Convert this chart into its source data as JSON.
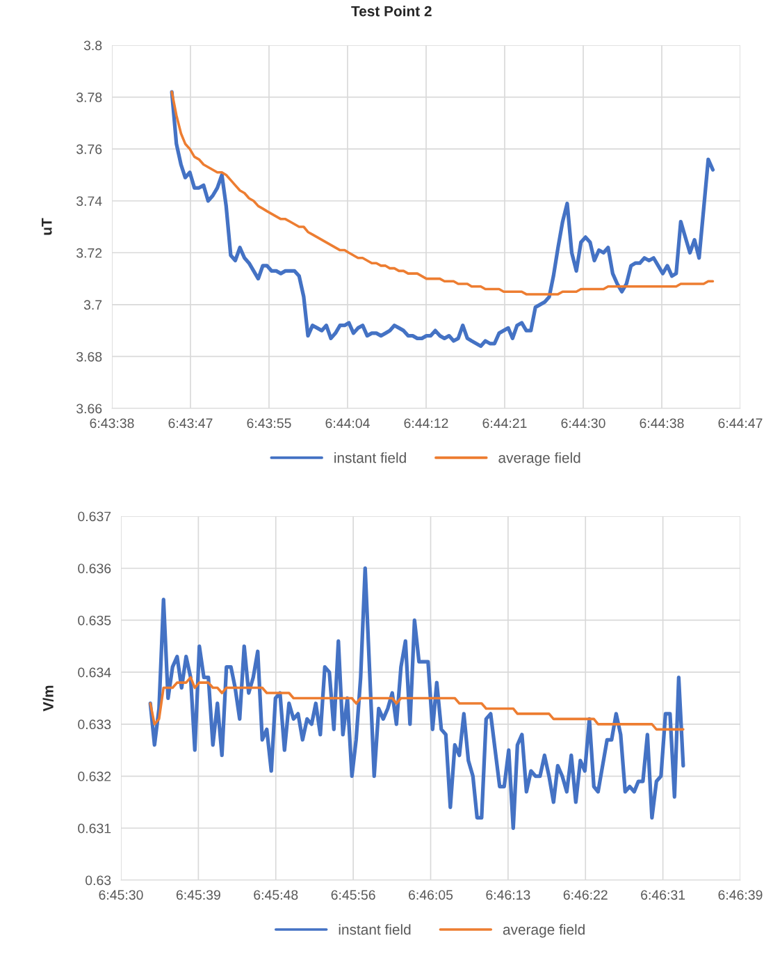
{
  "chart_data": [
    {
      "type": "line",
      "title": "Test Point 2",
      "ylabel": "uT",
      "xlim": [
        6.7272,
        6.7464
      ],
      "ylim": [
        3.66,
        3.8
      ],
      "xticks": [
        {
          "value": 6.7272,
          "label": "6:43:38"
        },
        {
          "value": 6.7296,
          "label": "6:43:47"
        },
        {
          "value": 6.732,
          "label": "6:43:55"
        },
        {
          "value": 6.7344,
          "label": "6:44:04"
        },
        {
          "value": 6.7368,
          "label": "6:44:12"
        },
        {
          "value": 6.7392,
          "label": "6:44:21"
        },
        {
          "value": 6.7416,
          "label": "6:44:30"
        },
        {
          "value": 6.744,
          "label": "6:44:38"
        },
        {
          "value": 6.7464,
          "label": "6:44:47"
        }
      ],
      "yticks": [
        3.66,
        3.68,
        3.7,
        3.72,
        3.74,
        3.76,
        3.78,
        3.8
      ],
      "grid": true,
      "legend": "bottom",
      "x": [
        6.72903,
        6.72917,
        6.72931,
        6.72944,
        6.72958,
        6.72972,
        6.72986,
        6.73,
        6.73014,
        6.73028,
        6.73042,
        6.73056,
        6.73069,
        6.73083,
        6.73097,
        6.73111,
        6.73125,
        6.73139,
        6.73153,
        6.73167,
        6.73181,
        6.73194,
        6.73208,
        6.73222,
        6.73236,
        6.7325,
        6.73264,
        6.73278,
        6.73292,
        6.73306,
        6.73319,
        6.73333,
        6.73347,
        6.73361,
        6.73375,
        6.73389,
        6.73403,
        6.73417,
        6.73431,
        6.73444,
        6.73458,
        6.73472,
        6.73486,
        6.735,
        6.73514,
        6.73528,
        6.73542,
        6.73556,
        6.73569,
        6.73583,
        6.73597,
        6.73611,
        6.73625,
        6.73639,
        6.73653,
        6.73667,
        6.73681,
        6.73694,
        6.73708,
        6.73722,
        6.73736,
        6.7375,
        6.73764,
        6.73778,
        6.73792,
        6.73806,
        6.73819,
        6.73833,
        6.73847,
        6.73861,
        6.73875,
        6.73889,
        6.73903,
        6.73917,
        6.73931,
        6.73944,
        6.73958,
        6.73972,
        6.73986,
        6.74,
        6.74014,
        6.74028,
        6.74042,
        6.74056,
        6.74069,
        6.74083,
        6.74097,
        6.74111,
        6.74125,
        6.74139,
        6.74153,
        6.74167,
        6.74181,
        6.74194,
        6.74208,
        6.74222,
        6.74236,
        6.7425,
        6.74264,
        6.74278,
        6.74292,
        6.74306,
        6.74319,
        6.74333,
        6.74347,
        6.74361,
        6.74375,
        6.74389,
        6.74403,
        6.74417,
        6.74431,
        6.74444,
        6.74458,
        6.74472,
        6.74486,
        6.745,
        6.74514,
        6.74528,
        6.74542,
        6.74556
      ],
      "series": [
        {
          "name": "instant field",
          "color": "#4472c4",
          "values": [
            3.782,
            3.762,
            3.754,
            3.749,
            3.751,
            3.745,
            3.745,
            3.746,
            3.74,
            3.742,
            3.745,
            3.75,
            3.738,
            3.719,
            3.717,
            3.722,
            3.718,
            3.716,
            3.713,
            3.71,
            3.715,
            3.715,
            3.713,
            3.713,
            3.712,
            3.713,
            3.713,
            3.713,
            3.711,
            3.703,
            3.688,
            3.692,
            3.691,
            3.69,
            3.692,
            3.687,
            3.689,
            3.692,
            3.692,
            3.693,
            3.689,
            3.691,
            3.692,
            3.688,
            3.689,
            3.689,
            3.688,
            3.689,
            3.69,
            3.692,
            3.691,
            3.69,
            3.688,
            3.688,
            3.687,
            3.687,
            3.688,
            3.688,
            3.69,
            3.688,
            3.687,
            3.688,
            3.686,
            3.687,
            3.692,
            3.687,
            3.686,
            3.685,
            3.684,
            3.686,
            3.685,
            3.685,
            3.689,
            3.69,
            3.691,
            3.687,
            3.692,
            3.693,
            3.69,
            3.69,
            3.699,
            3.7,
            3.701,
            3.703,
            3.711,
            3.722,
            3.732,
            3.739,
            3.72,
            3.713,
            3.724,
            3.726,
            3.724,
            3.717,
            3.721,
            3.72,
            3.722,
            3.712,
            3.708,
            3.705,
            3.708,
            3.715,
            3.716,
            3.716,
            3.718,
            3.717,
            3.718,
            3.715,
            3.712,
            3.715,
            3.711,
            3.712,
            3.732,
            3.726,
            3.72,
            3.725,
            3.718,
            3.737,
            3.756,
            3.752
          ]
        },
        {
          "name": "average field",
          "color": "#ed7d31",
          "values": [
            3.782,
            3.773,
            3.766,
            3.762,
            3.76,
            3.757,
            3.756,
            3.754,
            3.753,
            3.752,
            3.751,
            3.751,
            3.75,
            3.748,
            3.746,
            3.744,
            3.743,
            3.741,
            3.74,
            3.738,
            3.737,
            3.736,
            3.735,
            3.734,
            3.733,
            3.733,
            3.732,
            3.731,
            3.73,
            3.73,
            3.728,
            3.727,
            3.726,
            3.725,
            3.724,
            3.723,
            3.722,
            3.721,
            3.721,
            3.72,
            3.719,
            3.718,
            3.718,
            3.717,
            3.716,
            3.716,
            3.715,
            3.715,
            3.714,
            3.714,
            3.713,
            3.713,
            3.712,
            3.712,
            3.712,
            3.711,
            3.71,
            3.71,
            3.71,
            3.71,
            3.709,
            3.709,
            3.709,
            3.708,
            3.708,
            3.708,
            3.707,
            3.707,
            3.707,
            3.706,
            3.706,
            3.706,
            3.706,
            3.705,
            3.705,
            3.705,
            3.705,
            3.705,
            3.704,
            3.704,
            3.704,
            3.704,
            3.704,
            3.704,
            3.704,
            3.704,
            3.705,
            3.705,
            3.705,
            3.705,
            3.706,
            3.706,
            3.706,
            3.706,
            3.706,
            3.706,
            3.707,
            3.707,
            3.707,
            3.707,
            3.707,
            3.707,
            3.707,
            3.707,
            3.707,
            3.707,
            3.707,
            3.707,
            3.707,
            3.707,
            3.707,
            3.707,
            3.708,
            3.708,
            3.708,
            3.708,
            3.708,
            3.708,
            3.709,
            3.709
          ]
        }
      ]
    },
    {
      "type": "line",
      "ylabel": "V/m",
      "xlim": [
        6.7584,
        6.7776
      ],
      "ylim": [
        0.63,
        0.637
      ],
      "xticks": [
        {
          "value": 6.7584,
          "label": "6:45:30"
        },
        {
          "value": 6.7608,
          "label": "6:45:39"
        },
        {
          "value": 6.7632,
          "label": "6:45:48"
        },
        {
          "value": 6.7656,
          "label": "6:45:56"
        },
        {
          "value": 6.768,
          "label": "6:46:05"
        },
        {
          "value": 6.7704,
          "label": "6:46:13"
        },
        {
          "value": 6.7728,
          "label": "6:46:22"
        },
        {
          "value": 6.7752,
          "label": "6:46:31"
        },
        {
          "value": 6.7776,
          "label": "6:46:39"
        }
      ],
      "yticks": [
        0.63,
        0.631,
        0.632,
        0.633,
        0.634,
        0.635,
        0.636,
        0.637
      ],
      "grid": true,
      "legend": "bottom",
      "x": [
        6.75931,
        6.75944,
        6.75958,
        6.75972,
        6.75986,
        6.76,
        6.76014,
        6.76028,
        6.76042,
        6.76056,
        6.76069,
        6.76083,
        6.76097,
        6.76111,
        6.76125,
        6.76139,
        6.76153,
        6.76167,
        6.76181,
        6.76194,
        6.76208,
        6.76222,
        6.76236,
        6.7625,
        6.76264,
        6.76278,
        6.76292,
        6.76306,
        6.76319,
        6.76333,
        6.76347,
        6.76361,
        6.76375,
        6.76389,
        6.76403,
        6.76417,
        6.76431,
        6.76444,
        6.76458,
        6.76472,
        6.76486,
        6.765,
        6.76514,
        6.76528,
        6.76542,
        6.76556,
        6.76569,
        6.76583,
        6.76597,
        6.76611,
        6.76625,
        6.76639,
        6.76653,
        6.76667,
        6.76681,
        6.76694,
        6.76708,
        6.76722,
        6.76736,
        6.7675,
        6.76764,
        6.76778,
        6.76792,
        6.76806,
        6.76819,
        6.76833,
        6.76847,
        6.76861,
        6.76875,
        6.76889,
        6.76903,
        6.76917,
        6.76931,
        6.76944,
        6.76958,
        6.76972,
        6.76986,
        6.77,
        6.77014,
        6.77028,
        6.77042,
        6.77056,
        6.77069,
        6.77083,
        6.77097,
        6.77111,
        6.77125,
        6.77139,
        6.77153,
        6.77167,
        6.77181,
        6.77194,
        6.77208,
        6.77222,
        6.77236,
        6.7725,
        6.77264,
        6.77278,
        6.77292,
        6.77306,
        6.77319,
        6.77333,
        6.77347,
        6.77361,
        6.77375,
        6.77389,
        6.77403,
        6.77417,
        6.77431,
        6.77444,
        6.77458,
        6.77472,
        6.77486,
        6.775,
        6.77514,
        6.77528,
        6.77542,
        6.77556,
        6.77569,
        6.77583
      ],
      "series": [
        {
          "name": "instant field",
          "color": "#4472c4",
          "values": [
            0.6334,
            0.6326,
            0.6333,
            0.6354,
            0.6335,
            0.6341,
            0.6343,
            0.6337,
            0.6343,
            0.6339,
            0.6325,
            0.6345,
            0.6339,
            0.6339,
            0.6326,
            0.6334,
            0.6324,
            0.6341,
            0.6341,
            0.6337,
            0.6331,
            0.6345,
            0.6336,
            0.6339,
            0.6344,
            0.6327,
            0.6329,
            0.6321,
            0.6335,
            0.6336,
            0.6325,
            0.6334,
            0.6331,
            0.6332,
            0.6327,
            0.6331,
            0.633,
            0.6334,
            0.6328,
            0.6341,
            0.634,
            0.6329,
            0.6346,
            0.6328,
            0.6335,
            0.632,
            0.6327,
            0.6339,
            0.636,
            0.634,
            0.632,
            0.6333,
            0.6331,
            0.6333,
            0.6336,
            0.633,
            0.6341,
            0.6346,
            0.633,
            0.635,
            0.6342,
            0.6342,
            0.6342,
            0.6329,
            0.6338,
            0.6329,
            0.6328,
            0.6314,
            0.6326,
            0.6324,
            0.6332,
            0.6323,
            0.632,
            0.6312,
            0.6312,
            0.6331,
            0.6332,
            0.6325,
            0.6318,
            0.6318,
            0.6325,
            0.631,
            0.6326,
            0.6328,
            0.6317,
            0.6321,
            0.632,
            0.632,
            0.6324,
            0.632,
            0.6315,
            0.6322,
            0.632,
            0.6317,
            0.6324,
            0.6315,
            0.6323,
            0.6321,
            0.6331,
            0.6318,
            0.6317,
            0.6322,
            0.6327,
            0.6327,
            0.6332,
            0.6328,
            0.6317,
            0.6318,
            0.6317,
            0.6319,
            0.6319,
            0.6328,
            0.6312,
            0.6319,
            0.632,
            0.6332,
            0.6332,
            0.6316,
            0.6339,
            0.6322
          ]
        },
        {
          "name": "average field",
          "color": "#ed7d31",
          "values": [
            0.6334,
            0.633,
            0.6331,
            0.6337,
            0.6337,
            0.6337,
            0.6338,
            0.6338,
            0.6338,
            0.6339,
            0.6337,
            0.6338,
            0.6338,
            0.6338,
            0.6337,
            0.6337,
            0.6336,
            0.6337,
            0.6337,
            0.6337,
            0.6337,
            0.6337,
            0.6337,
            0.6337,
            0.6337,
            0.6337,
            0.6336,
            0.6336,
            0.6336,
            0.6336,
            0.6336,
            0.6336,
            0.6335,
            0.6335,
            0.6335,
            0.6335,
            0.6335,
            0.6335,
            0.6335,
            0.6335,
            0.6335,
            0.6335,
            0.6335,
            0.6335,
            0.6335,
            0.6335,
            0.6334,
            0.6335,
            0.6335,
            0.6335,
            0.6335,
            0.6335,
            0.6335,
            0.6335,
            0.6335,
            0.6334,
            0.6335,
            0.6335,
            0.6335,
            0.6335,
            0.6335,
            0.6335,
            0.6335,
            0.6335,
            0.6335,
            0.6335,
            0.6335,
            0.6335,
            0.6335,
            0.6334,
            0.6334,
            0.6334,
            0.6334,
            0.6334,
            0.6334,
            0.6333,
            0.6333,
            0.6333,
            0.6333,
            0.6333,
            0.6333,
            0.6333,
            0.6332,
            0.6332,
            0.6332,
            0.6332,
            0.6332,
            0.6332,
            0.6332,
            0.6332,
            0.6331,
            0.6331,
            0.6331,
            0.6331,
            0.6331,
            0.6331,
            0.6331,
            0.6331,
            0.6331,
            0.6331,
            0.633,
            0.633,
            0.633,
            0.633,
            0.633,
            0.633,
            0.633,
            0.633,
            0.633,
            0.633,
            0.633,
            0.633,
            0.633,
            0.6329,
            0.6329,
            0.6329,
            0.6329,
            0.6329,
            0.6329,
            0.6329
          ]
        }
      ]
    }
  ]
}
